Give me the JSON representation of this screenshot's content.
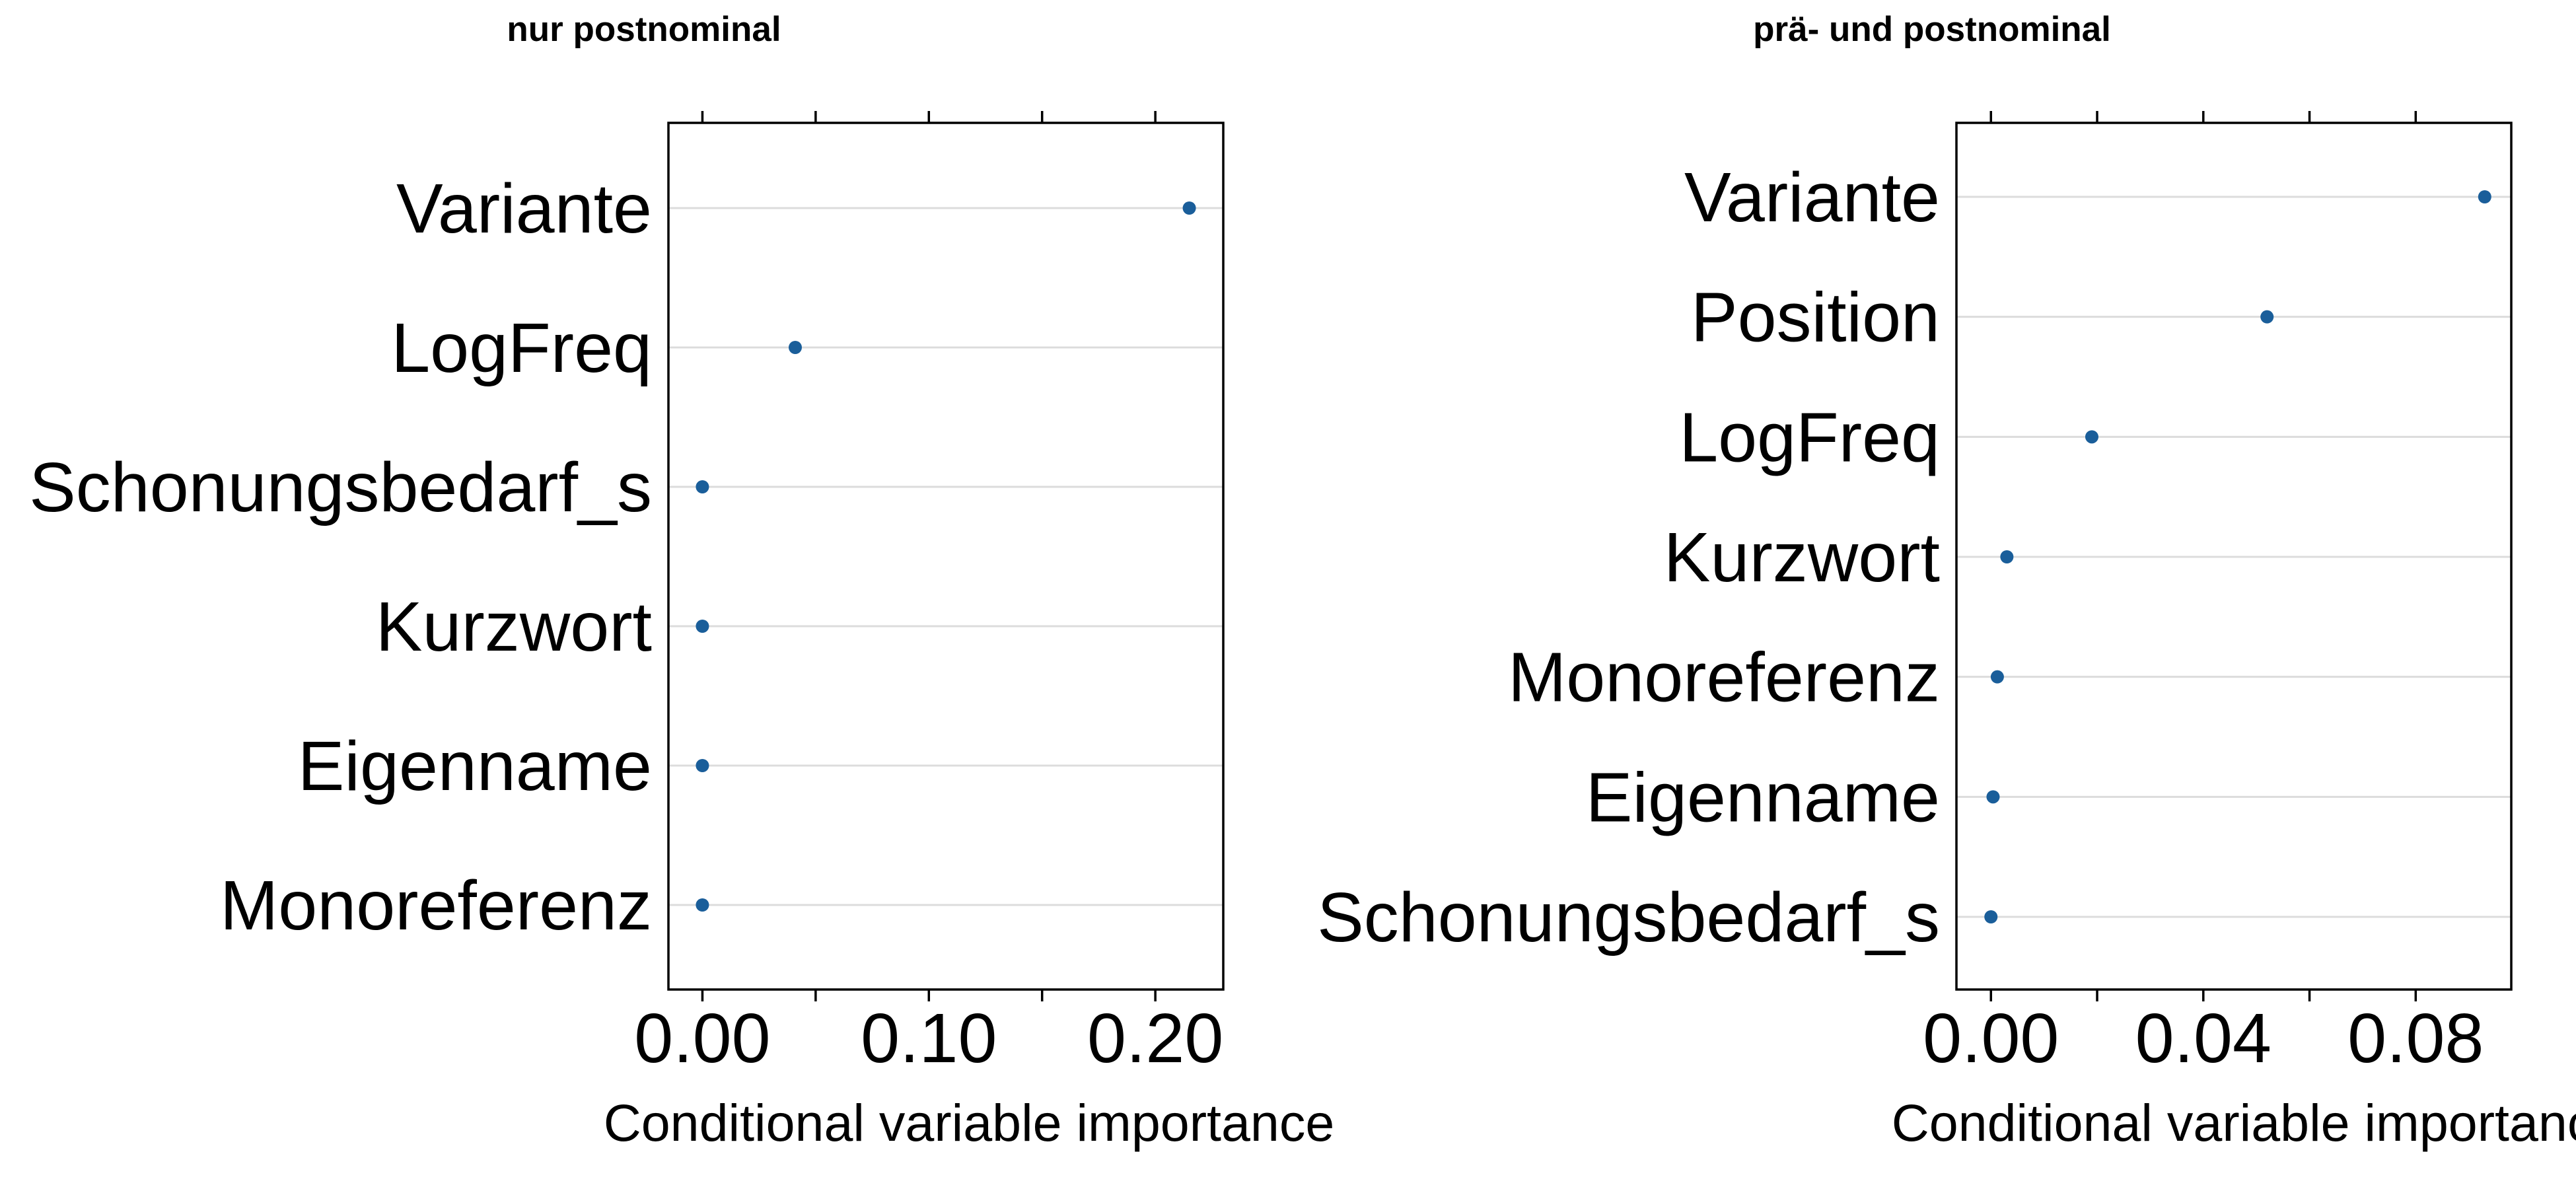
{
  "chart_data": [
    {
      "type": "scatter",
      "title": "nur postnominal",
      "xlabel": "Conditional variable importance",
      "xlim": [
        -0.015,
        0.23
      ],
      "x_ticks": [
        0.0,
        0.05,
        0.1,
        0.15,
        0.2
      ],
      "x_tick_labels": [
        "0.00",
        "",
        "0.10",
        "",
        "0.20"
      ],
      "categories": [
        "Variante",
        "LogFreq",
        "Schonungsbedarf_s",
        "Kurzwort",
        "Eigenname",
        "Monoreferenz"
      ],
      "values": [
        0.215,
        0.041,
        0.0,
        0.0,
        0.0,
        0.0
      ],
      "point_color": "#1a5e9a",
      "grid": "horizontal"
    },
    {
      "type": "scatter",
      "title": "prä- und postnominal",
      "xlabel": "Conditional variable importance",
      "xlim": [
        -0.0065,
        0.098
      ],
      "x_ticks": [
        0.0,
        0.02,
        0.04,
        0.06,
        0.08
      ],
      "x_tick_labels": [
        "0.00",
        "",
        "0.04",
        "",
        "0.08"
      ],
      "categories": [
        "Variante",
        "Position",
        "LogFreq",
        "Kurzwort",
        "Monoreferenz",
        "Eigenname",
        "Schonungsbedarf_s"
      ],
      "values": [
        0.093,
        0.052,
        0.019,
        0.003,
        0.0012,
        0.0004,
        0.0
      ],
      "point_color": "#1a5e9a",
      "grid": "horizontal"
    }
  ]
}
